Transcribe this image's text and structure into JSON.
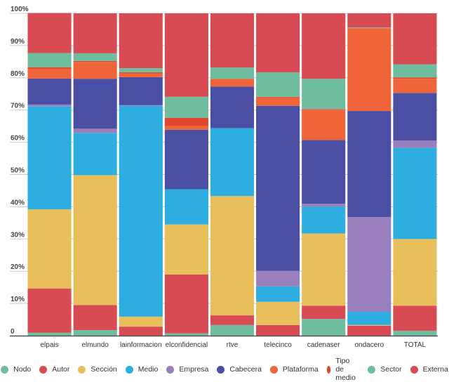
{
  "chart_data": {
    "type": "bar",
    "stacked": true,
    "normalized": true,
    "title": "",
    "xlabel": "",
    "ylabel": "",
    "ylim": [
      0,
      100
    ],
    "yticks": [
      0,
      10,
      20,
      30,
      40,
      50,
      60,
      70,
      80,
      90,
      100
    ],
    "ytick_labels": [
      "0",
      "10%",
      "20%",
      "30%",
      "40%",
      "50%",
      "60%",
      "70%",
      "80%",
      "90%",
      "100%"
    ],
    "grid": true,
    "legend_position": "bottom",
    "categories": [
      "elpais",
      "elmundo",
      "lainformacion",
      "elconfidencial",
      "rtve",
      "telecinco",
      "cadenaser",
      "ondacero",
      "TOTAL"
    ],
    "series": [
      {
        "name": "Nodo",
        "color": "#6dbd9e",
        "values": [
          0.9,
          1.7,
          0.0,
          0.7,
          3.3,
          0.0,
          5.2,
          0.0,
          1.5
        ]
      },
      {
        "name": "Autor",
        "color": "#d94b52",
        "values": [
          13.7,
          7.8,
          2.8,
          18.3,
          3.0,
          3.3,
          4.1,
          3.1,
          7.8
        ]
      },
      {
        "name": "Sección",
        "color": "#e8bf5a",
        "values": [
          24.6,
          40.3,
          3.1,
          15.5,
          37.0,
          7.2,
          22.4,
          0.2,
          20.7
        ]
      },
      {
        "name": "Medio",
        "color": "#2eaee0",
        "values": [
          32.0,
          13.1,
          65.4,
          10.9,
          21.1,
          4.8,
          8.3,
          4.1,
          28.3
        ]
      },
      {
        "name": "Empresa",
        "color": "#9a7fbd",
        "values": [
          0.5,
          1.3,
          0.2,
          0.0,
          0.0,
          4.8,
          0.9,
          29.4,
          2.2
        ]
      },
      {
        "name": "Cabecera",
        "color": "#4a4fa3",
        "values": [
          8.1,
          15.5,
          8.7,
          18.5,
          12.9,
          51.2,
          19.8,
          32.9,
          14.8
        ]
      },
      {
        "name": "Plataforma",
        "color": "#f0643a",
        "values": [
          3.0,
          5.2,
          1.1,
          1.1,
          2.4,
          2.6,
          9.4,
          25.7,
          4.4
        ]
      },
      {
        "name": "Tipo de medio",
        "color": "#e2462c",
        "values": [
          0.5,
          0.3,
          0.4,
          2.6,
          0.0,
          0.2,
          0.2,
          0.0,
          0.4
        ]
      },
      {
        "name": "Sector",
        "color": "#6dbd9e",
        "values": [
          4.4,
          2.4,
          1.3,
          6.5,
          3.5,
          7.6,
          9.4,
          0.2,
          4.1
        ]
      },
      {
        "name": "Externa",
        "color": "#d94b52",
        "values": [
          12.4,
          12.4,
          17.0,
          25.9,
          16.8,
          18.3,
          20.3,
          4.4,
          15.7
        ]
      }
    ]
  }
}
